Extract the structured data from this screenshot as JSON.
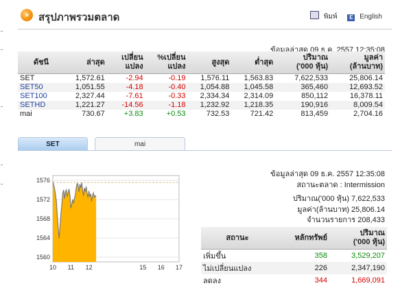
{
  "header": {
    "title": "สรุปภาพรวมตลาด",
    "logo_glyph": "»",
    "print_label": "พิมพ์",
    "english_label": "English",
    "english_glyph": "E"
  },
  "last_update": "ข้อมูลล่าสุด 09 ธ.ค. 2557 12:35:08",
  "index_table": {
    "columns": [
      {
        "label": "ดัชนี"
      },
      {
        "label": "ล่าสุด"
      },
      {
        "label": "เปลี่ยน",
        "label2": "แปลง"
      },
      {
        "label": "%เปลี่ยน",
        "label2": "แปลง"
      },
      {
        "label": "สูงสุด"
      },
      {
        "label": "ต่ำสุด"
      },
      {
        "label": "ปริมาณ",
        "label2": "('000 หุ้น)"
      },
      {
        "label": "มูลค่า",
        "label2": "(ล้านบาท)"
      }
    ],
    "rows": [
      {
        "name": "SET",
        "last": "1,572.61",
        "change": "-2.94",
        "pct": "-0.19",
        "high": "1,576.11",
        "low": "1,563.83",
        "volume": "7,622,533",
        "value": "25,806.14"
      },
      {
        "name": "SET50",
        "last": "1,051.55",
        "change": "-4.18",
        "pct": "-0.40",
        "high": "1,054.88",
        "low": "1,045.58",
        "volume": "365,460",
        "value": "12,693.52"
      },
      {
        "name": "SET100",
        "last": "2,327.44",
        "change": "-7.61",
        "pct": "-0.33",
        "high": "2,334.34",
        "low": "2,314.09",
        "volume": "850,112",
        "value": "16,378.11"
      },
      {
        "name": "SETHD",
        "last": "1,221.27",
        "change": "-14.56",
        "pct": "-1.18",
        "high": "1,232.92",
        "low": "1,218.35",
        "volume": "190,916",
        "value": "8,009.54"
      },
      {
        "name": "mai",
        "last": "730.67",
        "change": "+3.83",
        "pct": "+0.53",
        "high": "732.53",
        "low": "721.42",
        "volume": "813,459",
        "value": "2,704.16"
      }
    ]
  },
  "tabs": [
    {
      "label": "SET",
      "active": true
    },
    {
      "label": "mai",
      "active": false
    }
  ],
  "market_info": {
    "last_update": "ข้อมูลล่าสุด 09 ธ.ค. 2557 12:35:08",
    "status": "สถานะตลาด : Intermission",
    "volume": "ปริมาณ('000 หุ้น) 7,622,533",
    "value": "มูลค่า(ล้านบาท) 25,806.14",
    "trades": "จำนวนรายการ 208,433"
  },
  "advance_decline": {
    "columns": [
      "สถานะ",
      "หลักทรัพย์",
      "ปริมาณ",
      "('000 หุ้น)"
    ],
    "rows": [
      {
        "status": "เพิ่มขึ้น",
        "securities": "358",
        "volume": "3,529,207"
      },
      {
        "status": "ไม่เปลี่ยนแปลง",
        "securities": "226",
        "volume": "2,347,190"
      },
      {
        "status": "ลดลง",
        "securities": "344",
        "volume": "1,669,091"
      }
    ]
  },
  "colors": {
    "negative": "#d40000",
    "positive": "#0a8a0a",
    "chart_fill": "#ffb400",
    "chart_line": "#7a7a7a",
    "reference_line": "#d9c08a"
  },
  "chart_data": {
    "type": "area",
    "x_ticks": [
      "10",
      "11",
      "12",
      "15",
      "16",
      "17"
    ],
    "y_ticks": [
      "1576",
      "1572",
      "1568",
      "1564",
      "1560"
    ],
    "ylim": [
      1559,
      1577
    ],
    "xlim": [
      10,
      17
    ],
    "reference_value": 1575.55,
    "x": [
      10.0,
      10.05,
      10.1,
      10.15,
      10.2,
      10.25,
      10.3,
      10.35,
      10.4,
      10.45,
      10.5,
      10.55,
      10.6,
      10.65,
      10.7,
      10.75,
      10.8,
      10.85,
      10.9,
      10.95,
      11.0,
      11.05,
      11.1,
      11.15,
      11.2,
      11.25,
      11.3,
      11.35,
      11.4,
      11.45,
      11.5,
      11.55,
      11.6,
      11.65,
      11.7,
      11.75,
      11.8,
      11.85,
      11.9,
      11.95,
      12.0,
      12.05,
      12.1,
      12.15,
      12.2,
      12.25,
      12.3,
      12.35,
      12.4
    ],
    "y": [
      1575.8,
      1575.0,
      1574.2,
      1573.0,
      1571.5,
      1568.5,
      1566.0,
      1563.9,
      1566.5,
      1569.0,
      1571.0,
      1573.3,
      1574.0,
      1572.2,
      1573.6,
      1574.0,
      1572.6,
      1573.5,
      1574.2,
      1572.8,
      1570.2,
      1571.0,
      1572.0,
      1571.2,
      1572.3,
      1573.0,
      1574.5,
      1575.4,
      1575.0,
      1573.6,
      1575.2,
      1574.4,
      1575.6,
      1574.0,
      1572.8,
      1574.4,
      1573.6,
      1574.7,
      1573.3,
      1572.4,
      1573.8,
      1572.6,
      1573.2,
      1571.6,
      1572.8,
      1573.4,
      1572.5,
      1572.8,
      1572.6
    ]
  }
}
